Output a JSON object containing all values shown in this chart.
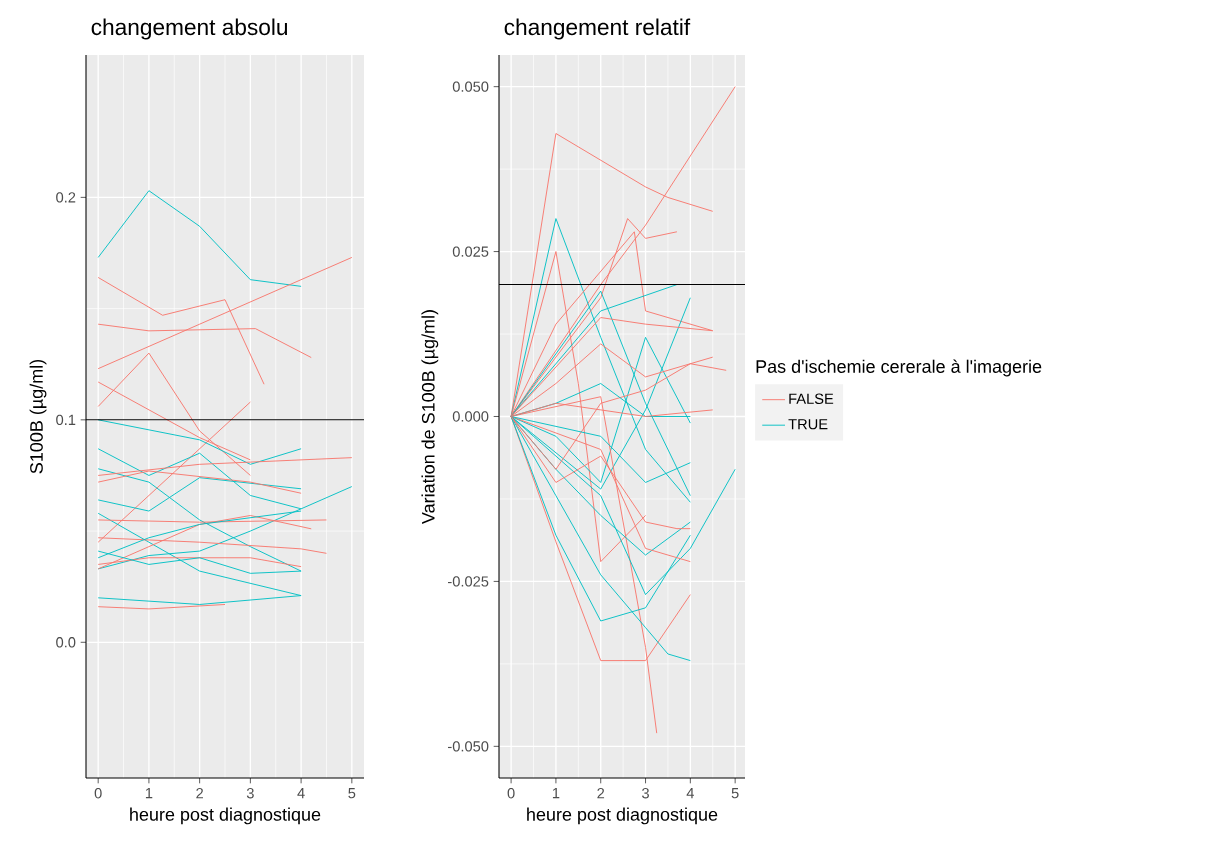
{
  "chart_data": [
    {
      "type": "line",
      "title": "changement absolu",
      "xlabel": "heure post diagnostique",
      "ylabel": "S100B (µg/ml)",
      "xlim": [
        -0.24,
        5.24
      ],
      "ylim": [
        -0.061,
        0.264
      ],
      "xticks": [
        0,
        1,
        2,
        3,
        4,
        5
      ],
      "yticks": [
        {
          "value": 0,
          "label": "0.0"
        },
        0.1,
        0.2
      ],
      "grid": true,
      "line_style": "solid",
      "ref_lines": [
        {
          "axis": "y",
          "value": 0.1,
          "color": "#000000"
        }
      ],
      "series": [
        {
          "color": "#00BFC4",
          "x": [
            0,
            1,
            2,
            3,
            4
          ],
          "values": [
            0.173,
            0.203,
            0.187,
            0.163,
            0.16
          ]
        },
        {
          "color": "#F8766D",
          "x": [
            0,
            1.27,
            2.5,
            3.27
          ],
          "values": [
            0.164,
            0.147,
            0.154,
            0.116
          ]
        },
        {
          "color": "#F8766D",
          "x": [
            0,
            1,
            3.1,
            4.2
          ],
          "values": [
            0.143,
            0.14,
            0.141,
            0.128
          ]
        },
        {
          "color": "#F8766D",
          "x": [
            0,
            2,
            5
          ],
          "values": [
            0.123,
            0.143,
            0.173
          ]
        },
        {
          "color": "#F8766D",
          "x": [
            0,
            1,
            2,
            3
          ],
          "values": [
            0.106,
            0.13,
            0.095,
            0.075
          ]
        },
        {
          "color": "#F8766D",
          "x": [
            0,
            2,
            3
          ],
          "values": [
            0.117,
            0.092,
            0.082
          ]
        },
        {
          "color": "#F8766D",
          "x": [
            0,
            3
          ],
          "values": [
            0.045,
            0.108
          ]
        },
        {
          "color": "#00BFC4",
          "x": [
            0,
            2,
            3,
            4
          ],
          "values": [
            0.1,
            0.091,
            0.08,
            0.087
          ]
        },
        {
          "color": "#00BFC4",
          "x": [
            0,
            1,
            2,
            3,
            4
          ],
          "values": [
            0.087,
            0.075,
            0.085,
            0.066,
            0.06
          ]
        },
        {
          "color": "#00BFC4",
          "x": [
            0,
            1,
            2,
            3,
            4
          ],
          "values": [
            0.078,
            0.072,
            0.055,
            0.043,
            0.032
          ]
        },
        {
          "color": "#00BFC4",
          "x": [
            0,
            1,
            2,
            4
          ],
          "values": [
            0.064,
            0.059,
            0.074,
            0.069
          ]
        },
        {
          "color": "#00BFC4",
          "x": [
            0,
            2,
            4
          ],
          "values": [
            0.058,
            0.032,
            0.021
          ]
        },
        {
          "color": "#00BFC4",
          "x": [
            0,
            1,
            2,
            3,
            5
          ],
          "values": [
            0.033,
            0.039,
            0.041,
            0.05,
            0.07
          ]
        },
        {
          "color": "#00BFC4",
          "x": [
            0,
            2,
            4
          ],
          "values": [
            0.02,
            0.017,
            0.021
          ]
        },
        {
          "color": "#F8766D",
          "x": [
            0,
            1,
            2.5
          ],
          "values": [
            0.016,
            0.015,
            0.017
          ]
        },
        {
          "color": "#F8766D",
          "x": [
            0,
            2,
            5
          ],
          "values": [
            0.075,
            0.08,
            0.083
          ]
        },
        {
          "color": "#F8766D",
          "x": [
            0,
            1,
            3,
            4
          ],
          "values": [
            0.072,
            0.077,
            0.072,
            0.067
          ]
        },
        {
          "color": "#F8766D",
          "x": [
            0,
            2,
            4,
            4.5
          ],
          "values": [
            0.047,
            0.045,
            0.042,
            0.04
          ]
        },
        {
          "color": "#F8766D",
          "x": [
            0,
            1,
            2,
            3,
            4.2
          ],
          "values": [
            0.033,
            0.043,
            0.053,
            0.057,
            0.051
          ]
        },
        {
          "color": "#F8766D",
          "x": [
            0,
            1,
            3,
            4
          ],
          "values": [
            0.035,
            0.038,
            0.038,
            0.034
          ]
        },
        {
          "color": "#00BFC4",
          "x": [
            0,
            1,
            2,
            3,
            4
          ],
          "values": [
            0.041,
            0.035,
            0.038,
            0.031,
            0.032
          ]
        },
        {
          "color": "#F8766D",
          "x": [
            0,
            2,
            4.5
          ],
          "values": [
            0.055,
            0.054,
            0.055
          ]
        },
        {
          "color": "#00BFC4",
          "x": [
            0,
            1,
            2,
            4
          ],
          "values": [
            0.038,
            0.047,
            0.053,
            0.059
          ]
        }
      ]
    },
    {
      "type": "line",
      "title": "changement relatif",
      "xlabel": "heure post diagnostique",
      "ylabel": "Variation de S100B (µg/ml)",
      "legend_title": "Pas d'ischemie cererale à l'imagerie",
      "legend": "right",
      "xlim": [
        -0.27,
        5.22
      ],
      "ylim": [
        -0.0548,
        0.0548
      ],
      "xticks": [
        0,
        1,
        2,
        3,
        4,
        5
      ],
      "yticks": [
        {
          "value": -0.05,
          "label": "-0.050"
        },
        {
          "value": -0.025,
          "label": "-0.025"
        },
        {
          "value": 0,
          "label": "0.000"
        },
        {
          "value": 0.025,
          "label": "0.025"
        },
        {
          "value": 0.05,
          "label": "0.050"
        }
      ],
      "grid": true,
      "line_style": "solid",
      "ref_lines": [
        {
          "axis": "y",
          "value": 0.02,
          "color": "#000000"
        }
      ],
      "series": [
        {
          "name": "FALSE",
          "color": "#F8766D",
          "x": [
            0,
            1,
            3,
            3.5,
            4.5
          ],
          "values": [
            0,
            0.0429,
            0.0348,
            0.0332,
            0.0311
          ]
        },
        {
          "color": "#F8766D",
          "x": [
            0,
            2,
            3,
            5
          ],
          "values": [
            0,
            0.02,
            0.029,
            0.05
          ]
        },
        {
          "name": "TRUE",
          "color": "#00BFC4",
          "x": [
            0,
            1,
            2,
            3,
            4
          ],
          "values": [
            0,
            0.03,
            0.012,
            -0.005,
            -0.013
          ]
        },
        {
          "color": "#F8766D",
          "x": [
            0,
            1,
            1.5,
            2,
            3
          ],
          "values": [
            0,
            0.025,
            0.005,
            -0.022,
            -0.015
          ]
        },
        {
          "color": "#F8766D",
          "x": [
            0,
            2,
            2.6,
            3,
            3.7
          ],
          "values": [
            0,
            0.018,
            0.03,
            0.027,
            0.028
          ]
        },
        {
          "color": "#F8766D",
          "x": [
            0,
            1,
            2.75,
            3,
            4.5
          ],
          "values": [
            0,
            0.014,
            0.028,
            0.016,
            0.013
          ]
        },
        {
          "color": "#00BFC4",
          "x": [
            0,
            2,
            3.7
          ],
          "values": [
            0,
            0.016,
            0.02
          ]
        },
        {
          "color": "#00BFC4",
          "x": [
            0,
            2,
            3,
            4
          ],
          "values": [
            0,
            0.019,
            0.002,
            -0.012
          ]
        },
        {
          "color": "#00BFC4",
          "x": [
            0,
            1,
            2,
            3,
            4
          ],
          "values": [
            0,
            -0.003,
            -0.01,
            0.012,
            -0.001
          ]
        },
        {
          "color": "#00BFC4",
          "x": [
            0,
            2,
            3,
            4
          ],
          "values": [
            0,
            -0.011,
            0.001,
            0.018
          ]
        },
        {
          "color": "#F8766D",
          "x": [
            0,
            1,
            2,
            3,
            4
          ],
          "values": [
            0,
            -0.019,
            -0.037,
            -0.037,
            -0.027
          ]
        },
        {
          "color": "#F8766D",
          "x": [
            0,
            2,
            3,
            3.25
          ],
          "values": [
            0,
            0.003,
            -0.035,
            -0.048
          ]
        },
        {
          "color": "#00BFC4",
          "x": [
            0,
            1,
            2,
            3,
            4
          ],
          "values": [
            0,
            -0.018,
            -0.031,
            -0.029,
            -0.018
          ]
        },
        {
          "color": "#00BFC4",
          "x": [
            0,
            1,
            2,
            3,
            3.5,
            4
          ],
          "values": [
            0,
            -0.012,
            -0.024,
            -0.032,
            -0.036,
            -0.037
          ]
        },
        {
          "color": "#00BFC4",
          "x": [
            0,
            1,
            2,
            3,
            4
          ],
          "values": [
            0,
            -0.008,
            -0.015,
            -0.021,
            -0.016
          ]
        },
        {
          "color": "#00BFC4",
          "x": [
            0,
            2,
            3,
            4,
            5
          ],
          "values": [
            0,
            -0.012,
            -0.027,
            -0.02,
            -0.008
          ]
        },
        {
          "color": "#F8766D",
          "x": [
            0,
            1,
            2,
            3,
            4.5
          ],
          "values": [
            0,
            0.005,
            0.011,
            0.006,
            0.009
          ]
        },
        {
          "color": "#F8766D",
          "x": [
            0,
            1,
            2,
            3,
            4,
            4.8
          ],
          "values": [
            0,
            -0.008,
            0.002,
            0.004,
            0.008,
            0.007
          ]
        },
        {
          "color": "#F8766D",
          "x": [
            0,
            1,
            2,
            3,
            3.7,
            4
          ],
          "values": [
            0,
            -0.01,
            -0.006,
            -0.016,
            -0.017,
            -0.017
          ]
        },
        {
          "color": "#F8766D",
          "x": [
            0,
            2,
            3,
            4
          ],
          "values": [
            0,
            -0.005,
            -0.02,
            -0.022
          ]
        },
        {
          "color": "#00BFC4",
          "x": [
            0,
            1,
            2,
            3,
            4
          ],
          "values": [
            0,
            0.002,
            0.005,
            0.0,
            0.0
          ]
        },
        {
          "color": "#00BFC4",
          "x": [
            0,
            2,
            3,
            4
          ],
          "values": [
            0,
            -0.003,
            -0.01,
            -0.007
          ]
        },
        {
          "color": "#F8766D",
          "x": [
            0,
            2,
            3,
            4.5
          ],
          "values": [
            0,
            0.015,
            0.014,
            0.013
          ]
        },
        {
          "color": "#F8766D",
          "x": [
            0,
            1,
            3,
            4.5
          ],
          "values": [
            0,
            0.002,
            0.0,
            0.001
          ]
        }
      ]
    }
  ]
}
